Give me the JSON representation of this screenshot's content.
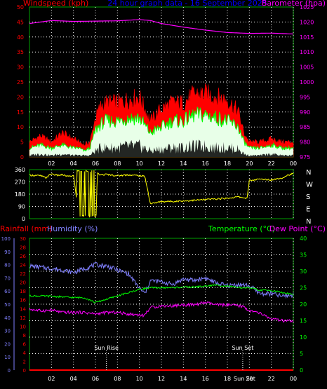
{
  "colors": {
    "background": "#000000",
    "grid": "#ffffff",
    "axis_green": "#00a000",
    "wind_avg": "#ff0000",
    "wind_gust": "#ffffff",
    "wind_gust_fill": "#e8ffe8",
    "wind_line": "#00ff00",
    "barometer": "#ff00ff",
    "title": "#0000ff",
    "direction": "#ffff00",
    "rain": "#ff0000",
    "humidity": "#8080ff",
    "temperature": "#00ff00",
    "dewpoint": "#ff00ff",
    "sun_marker": "#ffffff"
  },
  "chart_data": [
    {
      "type": "area",
      "title": "24 hour graph data - 16 September 2025",
      "y_left_label": "Windspeed (kph)",
      "y_right_label": "Barometer (hpa)",
      "x_ticks": [
        "02",
        "04",
        "06",
        "08",
        "10",
        "12",
        "14",
        "16",
        "18",
        "20",
        "22",
        "00"
      ],
      "y_left_ticks": [
        0,
        5,
        10,
        15,
        20,
        25,
        30,
        35,
        40,
        45,
        50
      ],
      "y_right_ticks": [
        975,
        980,
        985,
        990,
        995,
        1000,
        1005,
        1010,
        1015,
        1020,
        1025
      ],
      "ylim_left": [
        0,
        50
      ],
      "ylim_right": [
        975,
        1025
      ],
      "xlim_hours": [
        0,
        24
      ],
      "grid": true,
      "series": [
        {
          "key": "wind_top",
          "x": [
            0,
            1,
            2,
            3,
            4,
            4.5,
            5,
            5.5,
            6,
            6.5,
            7,
            8,
            9,
            10,
            11,
            12,
            13,
            14,
            15,
            16,
            17,
            18,
            19,
            19.5,
            20,
            21,
            22,
            23,
            24
          ],
          "values": [
            5,
            7,
            5,
            8,
            6,
            5,
            4,
            5,
            13,
            17,
            18,
            18,
            19,
            20,
            12,
            16,
            18,
            18,
            21,
            21,
            20,
            19,
            15,
            8,
            5,
            5,
            6,
            5,
            5
          ]
        },
        {
          "key": "wind_mid",
          "x": [
            0,
            1,
            2,
            3,
            4,
            4.5,
            5,
            5.5,
            6,
            6.5,
            7,
            8,
            9,
            10,
            11,
            12,
            13,
            14,
            15,
            16,
            17,
            18,
            19,
            19.5,
            20,
            21,
            22,
            23,
            24
          ],
          "values": [
            3,
            4,
            3,
            4,
            3,
            3,
            2,
            3,
            9,
            11,
            12,
            12,
            13,
            13,
            8,
            10,
            12,
            12,
            14,
            14,
            13,
            12,
            10,
            5,
            3,
            3,
            4,
            3,
            3
          ]
        },
        {
          "key": "wind_low",
          "x": [
            0,
            1,
            2,
            3,
            4,
            4.5,
            5,
            5.5,
            6,
            6.5,
            7,
            8,
            9,
            10,
            11,
            12,
            13,
            14,
            15,
            16,
            17,
            18,
            19,
            19.5,
            20,
            21,
            22,
            23,
            24
          ],
          "values": [
            1,
            2,
            1,
            2,
            1,
            1,
            1,
            1,
            4,
            6,
            6,
            6,
            7,
            7,
            4,
            5,
            6,
            6,
            7,
            7,
            6,
            6,
            5,
            2,
            1,
            1,
            2,
            1,
            1
          ]
        },
        {
          "key": "barometer",
          "x": [
            0,
            2,
            4,
            6,
            8,
            10,
            11,
            12,
            14,
            16,
            18,
            20,
            22,
            24
          ],
          "values": [
            1019.5,
            1020.5,
            1020.2,
            1020.3,
            1020.4,
            1020.8,
            1020.5,
            1019.5,
            1018.3,
            1017.3,
            1016.5,
            1016.2,
            1016.3,
            1016.0
          ]
        }
      ]
    },
    {
      "type": "line",
      "y_left_ticks": [
        0,
        90,
        180,
        270,
        360
      ],
      "y_right_labels": [
        "N",
        "W",
        "S",
        "E",
        "N"
      ],
      "ylim": [
        0,
        360
      ],
      "series": [
        {
          "name": "direction",
          "x": [
            0,
            1,
            1.5,
            2,
            2.5,
            3,
            3.5,
            4,
            4.5,
            5,
            5.5,
            6,
            6.2,
            6.5,
            7,
            8,
            9,
            10,
            10.5,
            11,
            12,
            14,
            16,
            18,
            19,
            19.8,
            20,
            21,
            22,
            23,
            23.5,
            24
          ],
          "values": [
            320,
            315,
            300,
            330,
            318,
            322,
            310,
            316,
            25,
            350,
            10,
            30,
            330,
            320,
            325,
            315,
            322,
            315,
            310,
            110,
            125,
            130,
            140,
            150,
            160,
            150,
            280,
            290,
            285,
            300,
            320,
            330
          ]
        }
      ]
    },
    {
      "type": "line",
      "y_left_label_rain": "Rainfall (mm)",
      "y_left_label_humidity": "Humidity (%)",
      "y_right_label_temp": "Temperature (°C)",
      "y_right_label_dew": "Dew Point (°C)",
      "x_ticks": [
        "02",
        "04",
        "06",
        "08",
        "10",
        "12",
        "14",
        "16",
        "18",
        "20",
        "22",
        "00"
      ],
      "y_humidity_ticks": [
        0,
        10,
        20,
        30,
        40,
        50,
        60,
        70,
        80,
        90,
        100
      ],
      "y_rain_ticks": [
        0,
        2,
        4,
        6,
        8,
        10,
        12,
        14,
        16,
        18,
        20,
        22,
        24,
        26,
        28,
        30
      ],
      "y_temp_ticks": [
        0,
        5,
        10,
        15,
        20,
        25,
        30,
        35,
        40
      ],
      "ylim_humidity": [
        0,
        100
      ],
      "ylim_temp": [
        0,
        40
      ],
      "annotations": [
        {
          "text": "Sun Rise",
          "hour": 7.0
        },
        {
          "text": "Sun Set",
          "hour": 19.4
        }
      ],
      "extra_tick_label": "Sun Set",
      "series": [
        {
          "name": "rain",
          "x": [
            0,
            24
          ],
          "values": [
            0,
            0
          ]
        },
        {
          "name": "humidity",
          "x": [
            0,
            1,
            2,
            3,
            4,
            5,
            6,
            7,
            8,
            9,
            10,
            10.5,
            11,
            12,
            13,
            14,
            15,
            16,
            17,
            18,
            19,
            20,
            21,
            22,
            23,
            24
          ],
          "values": [
            79,
            78,
            77,
            76,
            74,
            77,
            80,
            79,
            76,
            73,
            62,
            58,
            68,
            67,
            65,
            69,
            68,
            70,
            66,
            64,
            65,
            64,
            58,
            58,
            56,
            57
          ]
        },
        {
          "name": "temperature",
          "x": [
            0,
            1,
            2,
            3,
            4,
            5,
            6,
            7,
            8,
            9,
            10,
            11,
            12,
            13,
            14,
            15,
            16,
            17,
            18,
            19,
            20,
            21,
            22,
            23,
            24
          ],
          "values": [
            22.5,
            22.5,
            22.4,
            22.2,
            22.0,
            22.0,
            20.5,
            21.5,
            22.5,
            23.5,
            24.5,
            25.0,
            25.0,
            25.0,
            25.2,
            25.2,
            25.5,
            25.8,
            25.5,
            25.0,
            25.0,
            24.2,
            24.2,
            23.5,
            23.0
          ]
        },
        {
          "name": "dewpoint",
          "x": [
            0,
            1,
            2,
            3,
            4,
            5,
            6,
            7,
            8,
            9,
            10,
            10.4,
            11,
            12,
            13,
            14,
            15,
            16,
            17,
            18,
            19,
            19.5,
            20,
            21,
            22,
            23,
            24
          ],
          "values": [
            18.5,
            18.0,
            18.2,
            17.5,
            17.5,
            17.5,
            17.0,
            17.5,
            17.5,
            17.0,
            16.8,
            16.5,
            19.0,
            19.5,
            19.5,
            19.8,
            19.8,
            20.5,
            19.8,
            19.8,
            19.5,
            19.2,
            18.0,
            17.2,
            15.5,
            15.0,
            14.8
          ]
        }
      ]
    }
  ]
}
